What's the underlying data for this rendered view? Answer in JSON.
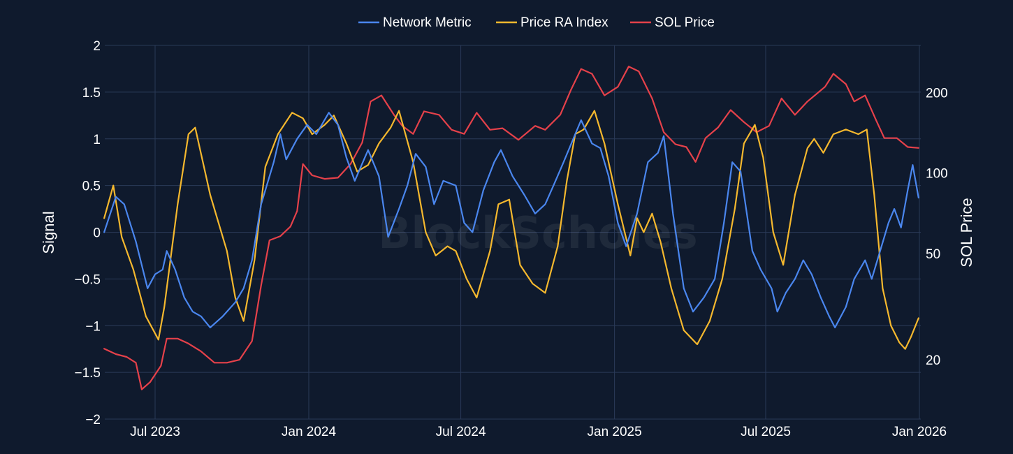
{
  "chart_data": {
    "type": "line",
    "title": "",
    "watermark": "BlockScholes",
    "legend": {
      "placement": "top-center",
      "entries": [
        "Network Metric",
        "Price RA Index",
        "SOL Price"
      ]
    },
    "x": {
      "start": "2023-05-01",
      "end": "2025-12-31",
      "tick_labels": [
        "Jul 2023",
        "Jan 2024",
        "Jul 2024",
        "Jan 2025",
        "Jul 2025",
        "Jan 2026"
      ],
      "tick_dates": [
        "2023-07-01",
        "2024-01-01",
        "2024-07-01",
        "2025-01-01",
        "2025-07-01",
        "2026-01-01"
      ]
    },
    "y_left": {
      "label": "Signal",
      "range": [
        -2,
        2
      ],
      "ticks": [
        2,
        1.5,
        1,
        0.5,
        0,
        -0.5,
        -1,
        -1.5,
        -2
      ],
      "tick_labels": [
        "2",
        "1.5",
        "1",
        "0.5",
        "0",
        "−0.5",
        "−1",
        "−1.5",
        "−2"
      ]
    },
    "y_right": {
      "label": "SOL Price",
      "scale": "log",
      "range": [
        12,
        300
      ],
      "ticks": [
        20,
        50,
        100,
        200
      ],
      "tick_labels": [
        "20",
        "50",
        "100",
        "200"
      ]
    },
    "series": [
      {
        "name": "Network Metric",
        "color": "#4a86ee",
        "axis": "left",
        "points": [
          [
            "2023-05-01",
            0.0
          ],
          [
            "2023-05-15",
            0.38
          ],
          [
            "2023-05-25",
            0.3
          ],
          [
            "2023-06-08",
            -0.1
          ],
          [
            "2023-06-22",
            -0.6
          ],
          [
            "2023-07-01",
            -0.45
          ],
          [
            "2023-07-10",
            -0.4
          ],
          [
            "2023-07-15",
            -0.2
          ],
          [
            "2023-07-25",
            -0.4
          ],
          [
            "2023-08-05",
            -0.7
          ],
          [
            "2023-08-15",
            -0.85
          ],
          [
            "2023-08-25",
            -0.9
          ],
          [
            "2023-09-05",
            -1.02
          ],
          [
            "2023-09-20",
            -0.9
          ],
          [
            "2023-10-05",
            -0.75
          ],
          [
            "2023-10-15",
            -0.6
          ],
          [
            "2023-10-25",
            -0.3
          ],
          [
            "2023-11-05",
            0.3
          ],
          [
            "2023-11-20",
            0.75
          ],
          [
            "2023-11-28",
            1.05
          ],
          [
            "2023-12-05",
            0.78
          ],
          [
            "2023-12-18",
            1.0
          ],
          [
            "2023-12-30",
            1.15
          ],
          [
            "2024-01-10",
            1.05
          ],
          [
            "2024-01-25",
            1.28
          ],
          [
            "2024-02-05",
            1.15
          ],
          [
            "2024-02-15",
            0.8
          ],
          [
            "2024-02-25",
            0.55
          ],
          [
            "2024-03-12",
            0.88
          ],
          [
            "2024-03-25",
            0.6
          ],
          [
            "2024-04-05",
            -0.05
          ],
          [
            "2024-04-18",
            0.25
          ],
          [
            "2024-04-28",
            0.5
          ],
          [
            "2024-05-08",
            0.84
          ],
          [
            "2024-05-20",
            0.7
          ],
          [
            "2024-05-30",
            0.3
          ],
          [
            "2024-06-10",
            0.55
          ],
          [
            "2024-06-25",
            0.5
          ],
          [
            "2024-07-05",
            0.1
          ],
          [
            "2024-07-15",
            0.0
          ],
          [
            "2024-07-28",
            0.45
          ],
          [
            "2024-08-10",
            0.75
          ],
          [
            "2024-08-18",
            0.88
          ],
          [
            "2024-09-01",
            0.6
          ],
          [
            "2024-09-15",
            0.4
          ],
          [
            "2024-09-28",
            0.2
          ],
          [
            "2024-10-10",
            0.3
          ],
          [
            "2024-10-20",
            0.5
          ],
          [
            "2024-11-01",
            0.75
          ],
          [
            "2024-11-15",
            1.05
          ],
          [
            "2024-11-22",
            1.2
          ],
          [
            "2024-12-05",
            0.95
          ],
          [
            "2024-12-15",
            0.9
          ],
          [
            "2024-12-25",
            0.6
          ],
          [
            "2025-01-05",
            0.1
          ],
          [
            "2025-01-15",
            -0.15
          ],
          [
            "2025-01-28",
            0.2
          ],
          [
            "2025-02-10",
            0.75
          ],
          [
            "2025-02-22",
            0.85
          ],
          [
            "2025-03-01",
            1.03
          ],
          [
            "2025-03-12",
            0.2
          ],
          [
            "2025-03-25",
            -0.6
          ],
          [
            "2025-04-05",
            -0.85
          ],
          [
            "2025-04-18",
            -0.7
          ],
          [
            "2025-05-01",
            -0.5
          ],
          [
            "2025-05-12",
            0.1
          ],
          [
            "2025-05-22",
            0.75
          ],
          [
            "2025-06-01",
            0.65
          ],
          [
            "2025-06-15",
            -0.2
          ],
          [
            "2025-06-25",
            -0.4
          ],
          [
            "2025-07-08",
            -0.6
          ],
          [
            "2025-07-15",
            -0.85
          ],
          [
            "2025-07-25",
            -0.65
          ],
          [
            "2025-08-05",
            -0.5
          ],
          [
            "2025-08-15",
            -0.3
          ],
          [
            "2025-08-25",
            -0.45
          ],
          [
            "2025-09-05",
            -0.7
          ],
          [
            "2025-09-15",
            -0.9
          ],
          [
            "2025-09-22",
            -1.02
          ],
          [
            "2025-10-05",
            -0.8
          ],
          [
            "2025-10-15",
            -0.5
          ],
          [
            "2025-10-28",
            -0.3
          ],
          [
            "2025-11-05",
            -0.5
          ],
          [
            "2025-11-15",
            -0.2
          ],
          [
            "2025-11-25",
            0.1
          ],
          [
            "2025-12-02",
            0.25
          ],
          [
            "2025-12-10",
            0.05
          ],
          [
            "2025-12-18",
            0.45
          ],
          [
            "2025-12-24",
            0.72
          ],
          [
            "2025-12-31",
            0.37
          ]
        ]
      },
      {
        "name": "Price RA Index",
        "color": "#f5b82e",
        "axis": "left",
        "points": [
          [
            "2023-05-01",
            0.15
          ],
          [
            "2023-05-12",
            0.5
          ],
          [
            "2023-05-22",
            -0.05
          ],
          [
            "2023-06-05",
            -0.4
          ],
          [
            "2023-06-20",
            -0.9
          ],
          [
            "2023-07-05",
            -1.15
          ],
          [
            "2023-07-12",
            -0.8
          ],
          [
            "2023-07-28",
            0.3
          ],
          [
            "2023-08-10",
            1.05
          ],
          [
            "2023-08-18",
            1.12
          ],
          [
            "2023-09-05",
            0.4
          ],
          [
            "2023-09-25",
            -0.2
          ],
          [
            "2023-10-05",
            -0.7
          ],
          [
            "2023-10-15",
            -0.95
          ],
          [
            "2023-10-28",
            -0.3
          ],
          [
            "2023-11-10",
            0.7
          ],
          [
            "2023-11-25",
            1.05
          ],
          [
            "2023-12-12",
            1.28
          ],
          [
            "2023-12-25",
            1.22
          ],
          [
            "2024-01-05",
            1.05
          ],
          [
            "2024-01-20",
            1.15
          ],
          [
            "2024-01-31",
            1.25
          ],
          [
            "2024-02-15",
            0.95
          ],
          [
            "2024-02-28",
            0.65
          ],
          [
            "2024-03-12",
            0.72
          ],
          [
            "2024-03-25",
            0.95
          ],
          [
            "2024-04-08",
            1.12
          ],
          [
            "2024-04-18",
            1.3
          ],
          [
            "2024-05-05",
            0.75
          ],
          [
            "2024-05-20",
            0.0
          ],
          [
            "2024-06-01",
            -0.25
          ],
          [
            "2024-06-15",
            -0.15
          ],
          [
            "2024-06-25",
            -0.2
          ],
          [
            "2024-07-08",
            -0.5
          ],
          [
            "2024-07-20",
            -0.7
          ],
          [
            "2024-08-05",
            -0.2
          ],
          [
            "2024-08-15",
            0.3
          ],
          [
            "2024-08-28",
            0.35
          ],
          [
            "2024-09-10",
            -0.35
          ],
          [
            "2024-09-25",
            -0.55
          ],
          [
            "2024-10-10",
            -0.65
          ],
          [
            "2024-10-25",
            -0.15
          ],
          [
            "2024-11-05",
            0.55
          ],
          [
            "2024-11-15",
            1.05
          ],
          [
            "2024-11-25",
            1.1
          ],
          [
            "2024-12-08",
            1.3
          ],
          [
            "2024-12-20",
            0.95
          ],
          [
            "2025-01-05",
            0.3
          ],
          [
            "2025-01-20",
            -0.25
          ],
          [
            "2025-01-28",
            0.15
          ],
          [
            "2025-02-05",
            0.0
          ],
          [
            "2025-02-15",
            0.2
          ],
          [
            "2025-02-25",
            -0.1
          ],
          [
            "2025-03-10",
            -0.6
          ],
          [
            "2025-03-25",
            -1.05
          ],
          [
            "2025-04-10",
            -1.2
          ],
          [
            "2025-04-25",
            -0.95
          ],
          [
            "2025-05-10",
            -0.5
          ],
          [
            "2025-05-25",
            0.25
          ],
          [
            "2025-06-05",
            0.95
          ],
          [
            "2025-06-18",
            1.15
          ],
          [
            "2025-06-28",
            0.8
          ],
          [
            "2025-07-10",
            0.0
          ],
          [
            "2025-07-22",
            -0.35
          ],
          [
            "2025-08-05",
            0.4
          ],
          [
            "2025-08-20",
            0.9
          ],
          [
            "2025-08-28",
            1.0
          ],
          [
            "2025-09-08",
            0.85
          ],
          [
            "2025-09-20",
            1.05
          ],
          [
            "2025-10-05",
            1.1
          ],
          [
            "2025-10-20",
            1.05
          ],
          [
            "2025-10-30",
            1.1
          ],
          [
            "2025-11-08",
            0.4
          ],
          [
            "2025-11-18",
            -0.6
          ],
          [
            "2025-11-28",
            -1.0
          ],
          [
            "2025-12-08",
            -1.18
          ],
          [
            "2025-12-15",
            -1.25
          ],
          [
            "2025-12-22",
            -1.12
          ],
          [
            "2025-12-31",
            -0.92
          ]
        ]
      },
      {
        "name": "SOL Price",
        "color": "#e5414a",
        "axis": "right",
        "points": [
          [
            "2023-05-01",
            22
          ],
          [
            "2023-05-15",
            21
          ],
          [
            "2023-05-28",
            20.5
          ],
          [
            "2023-06-08",
            19.5
          ],
          [
            "2023-06-15",
            15.5
          ],
          [
            "2023-06-25",
            16.5
          ],
          [
            "2023-07-08",
            19
          ],
          [
            "2023-07-15",
            24
          ],
          [
            "2023-07-28",
            24
          ],
          [
            "2023-08-10",
            23
          ],
          [
            "2023-08-25",
            21.5
          ],
          [
            "2023-09-10",
            19.5
          ],
          [
            "2023-09-25",
            19.5
          ],
          [
            "2023-10-10",
            20
          ],
          [
            "2023-10-25",
            23.5
          ],
          [
            "2023-11-05",
            38
          ],
          [
            "2023-11-15",
            56
          ],
          [
            "2023-11-28",
            58
          ],
          [
            "2023-12-10",
            63
          ],
          [
            "2023-12-18",
            72
          ],
          [
            "2023-12-25",
            108
          ],
          [
            "2024-01-05",
            98
          ],
          [
            "2024-01-20",
            95
          ],
          [
            "2024-02-05",
            96
          ],
          [
            "2024-02-20",
            108
          ],
          [
            "2024-03-05",
            130
          ],
          [
            "2024-03-15",
            185
          ],
          [
            "2024-03-28",
            195
          ],
          [
            "2024-04-12",
            165
          ],
          [
            "2024-04-22",
            150
          ],
          [
            "2024-05-05",
            140
          ],
          [
            "2024-05-18",
            170
          ],
          [
            "2024-06-05",
            165
          ],
          [
            "2024-06-20",
            145
          ],
          [
            "2024-07-05",
            140
          ],
          [
            "2024-07-20",
            168
          ],
          [
            "2024-08-05",
            145
          ],
          [
            "2024-08-20",
            147
          ],
          [
            "2024-09-08",
            133
          ],
          [
            "2024-09-28",
            150
          ],
          [
            "2024-10-10",
            145
          ],
          [
            "2024-10-28",
            165
          ],
          [
            "2024-11-10",
            205
          ],
          [
            "2024-11-22",
            245
          ],
          [
            "2024-12-05",
            235
          ],
          [
            "2024-12-20",
            195
          ],
          [
            "2025-01-05",
            210
          ],
          [
            "2025-01-18",
            250
          ],
          [
            "2025-01-30",
            240
          ],
          [
            "2025-02-15",
            190
          ],
          [
            "2025-03-01",
            142
          ],
          [
            "2025-03-15",
            128
          ],
          [
            "2025-03-28",
            125
          ],
          [
            "2025-04-08",
            110
          ],
          [
            "2025-04-20",
            135
          ],
          [
            "2025-05-05",
            148
          ],
          [
            "2025-05-20",
            172
          ],
          [
            "2025-06-05",
            155
          ],
          [
            "2025-06-20",
            142
          ],
          [
            "2025-07-05",
            150
          ],
          [
            "2025-07-20",
            190
          ],
          [
            "2025-08-05",
            165
          ],
          [
            "2025-08-20",
            185
          ],
          [
            "2025-09-10",
            210
          ],
          [
            "2025-09-20",
            235
          ],
          [
            "2025-10-05",
            215
          ],
          [
            "2025-10-15",
            185
          ],
          [
            "2025-10-28",
            195
          ],
          [
            "2025-11-10",
            158
          ],
          [
            "2025-11-20",
            135
          ],
          [
            "2025-12-05",
            135
          ],
          [
            "2025-12-18",
            125
          ],
          [
            "2025-12-31",
            124
          ]
        ]
      }
    ]
  }
}
